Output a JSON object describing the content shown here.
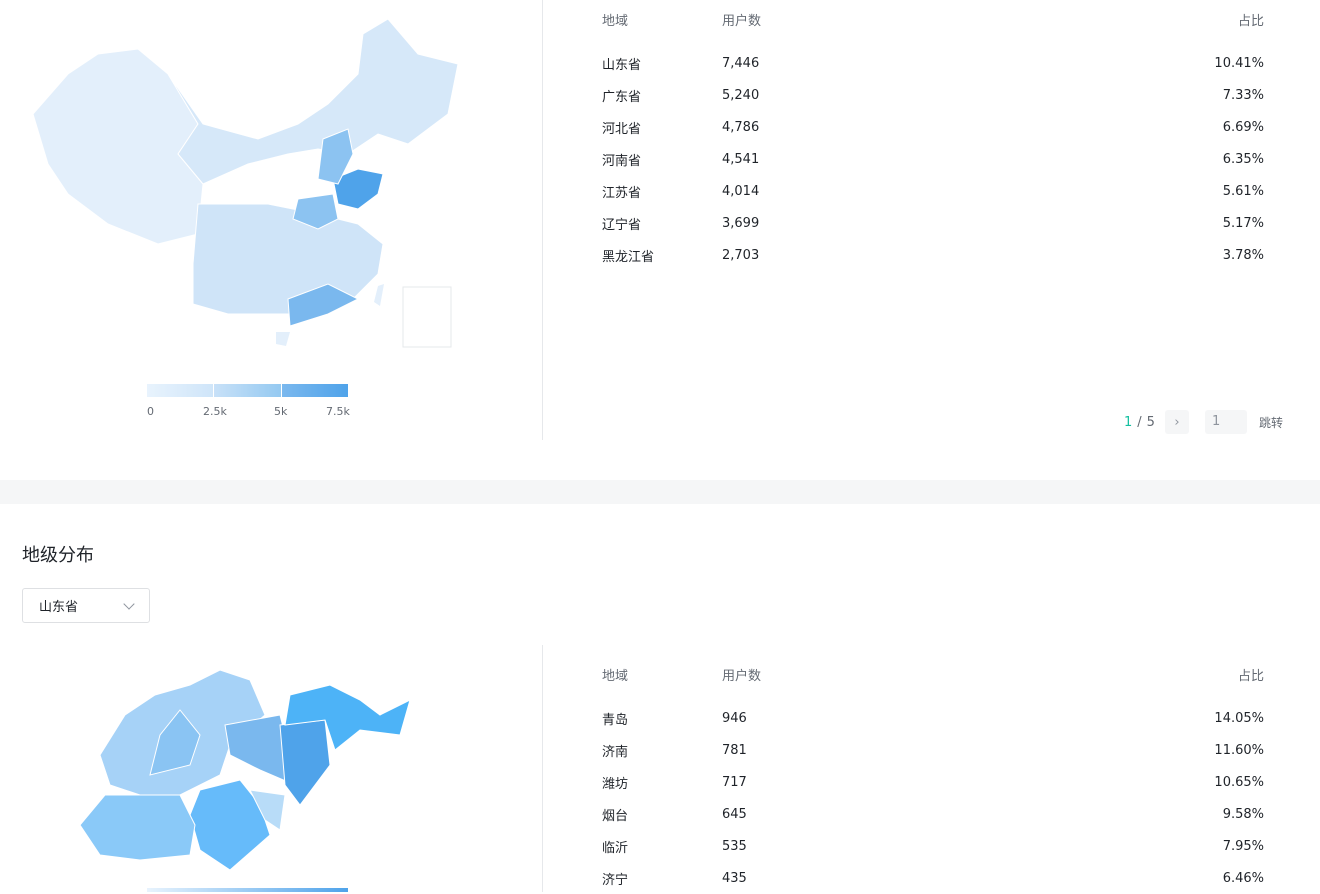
{
  "province_section": {
    "table": {
      "headers": [
        "地域",
        "用户数",
        "占比"
      ],
      "rows": [
        [
          "山东省",
          "7,446",
          "10.41%"
        ],
        [
          "广东省",
          "5,240",
          "7.33%"
        ],
        [
          "河北省",
          "4,786",
          "6.69%"
        ],
        [
          "河南省",
          "4,541",
          "6.35%"
        ],
        [
          "江苏省",
          "4,014",
          "5.61%"
        ],
        [
          "辽宁省",
          "3,699",
          "5.17%"
        ],
        [
          "黑龙江省",
          "2,703",
          "3.78%"
        ]
      ]
    },
    "legend": {
      "ticks": [
        "0",
        "2.5k",
        "5k",
        "7.5k"
      ],
      "color_min": "#e8f3fd",
      "color_max": "#4fa3ea"
    },
    "pager": {
      "current": "1",
      "separator": "/",
      "total": "5",
      "next_icon": "chevron-right-icon",
      "jump_value": "1",
      "jump_label": "跳转",
      "active_color": "#14c0a0"
    }
  },
  "city_section": {
    "title": "地级分布",
    "select_value": "山东省",
    "table": {
      "headers": [
        "地域",
        "用户数",
        "占比"
      ],
      "rows": [
        [
          "青岛",
          "946",
          "14.05%"
        ],
        [
          "济南",
          "781",
          "11.60%"
        ],
        [
          "潍坊",
          "717",
          "10.65%"
        ],
        [
          "烟台",
          "645",
          "9.58%"
        ],
        [
          "临沂",
          "535",
          "7.95%"
        ],
        [
          "济宁",
          "435",
          "6.46%"
        ]
      ]
    }
  }
}
